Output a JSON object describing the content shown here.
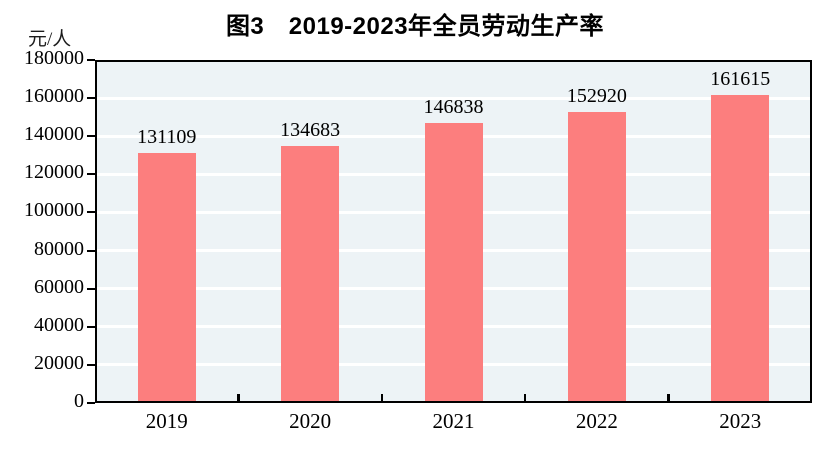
{
  "chart_data": {
    "type": "bar",
    "title": "图3　2019-2023年全员劳动生产率",
    "ylabel": "元/人",
    "xlabel": "",
    "categories": [
      "2019",
      "2020",
      "2021",
      "2022",
      "2023"
    ],
    "values": [
      131109,
      134683,
      146838,
      152920,
      161615
    ],
    "ylim": [
      0,
      180000
    ],
    "ytick_step": 20000,
    "yticks": [
      0,
      20000,
      40000,
      60000,
      80000,
      100000,
      120000,
      140000,
      160000,
      180000
    ],
    "grid": true,
    "legend_position": "none",
    "colors": {
      "bar": "#fc7e7e",
      "plot_background": "#edf3f6",
      "gridline": "#ffffff",
      "axis": "#000000",
      "text": "#000000"
    }
  }
}
